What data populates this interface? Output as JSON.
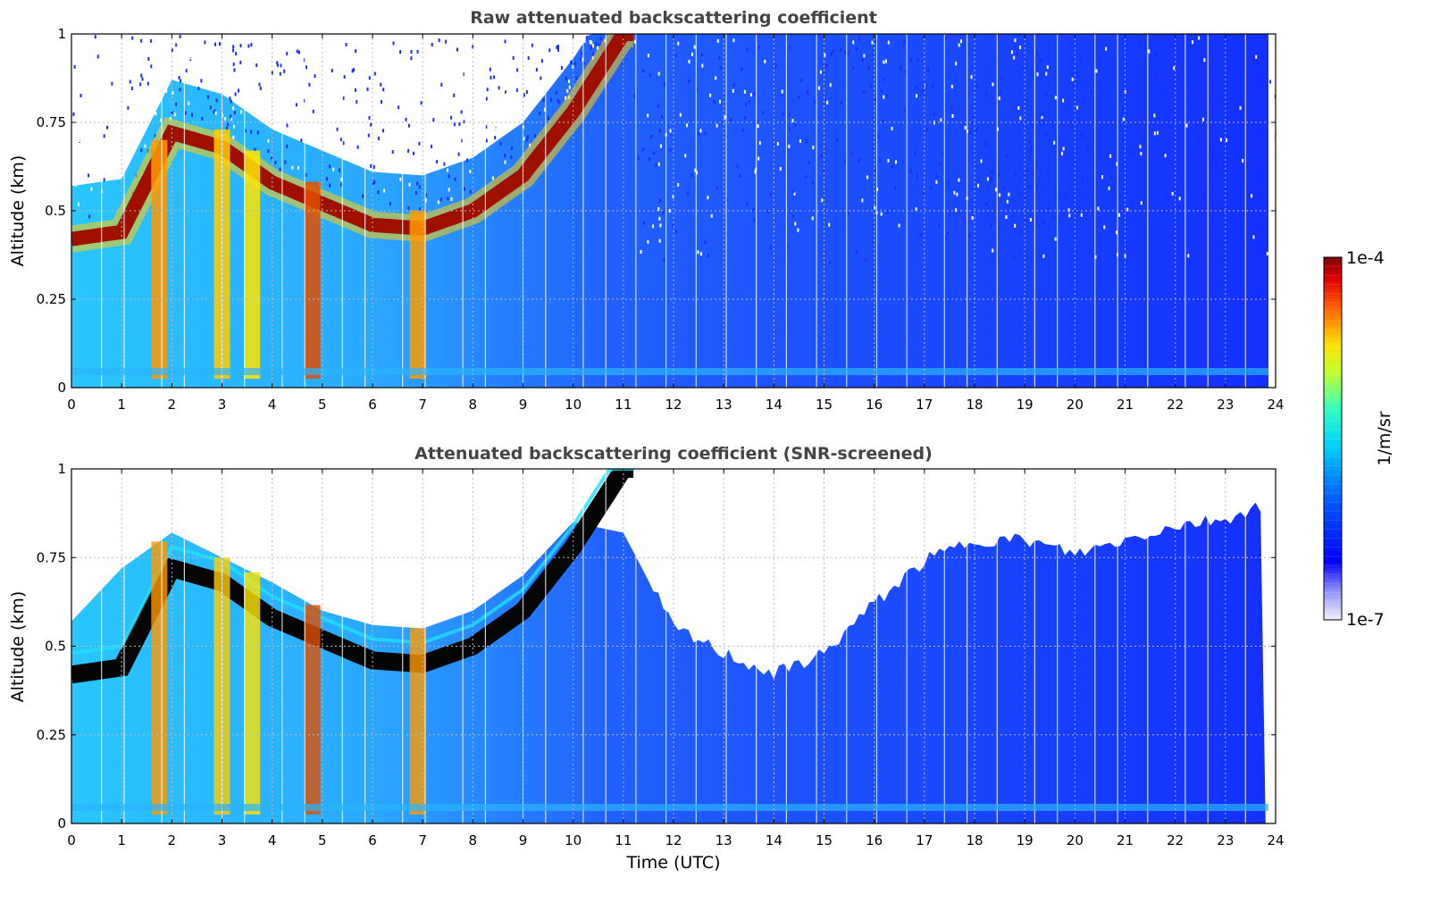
{
  "chart_data": [
    {
      "type": "heatmap",
      "title": "Raw attenuated backscattering coefficient",
      "xlabel": "",
      "ylabel": "Altitude (km)",
      "xlim": [
        0,
        24
      ],
      "ylim": [
        0,
        1
      ],
      "x_ticks": [
        "0",
        "1",
        "2",
        "3",
        "4",
        "5",
        "6",
        "7",
        "8",
        "9",
        "10",
        "11",
        "12",
        "13",
        "14",
        "15",
        "16",
        "17",
        "18",
        "19",
        "20",
        "21",
        "22",
        "23",
        "24"
      ],
      "y_ticks": [
        "0",
        "0.25",
        "0.5",
        "0.75",
        "1"
      ],
      "grid": true,
      "colorscale": "jet (log)",
      "layer_top_km": [
        [
          0,
          0.42
        ],
        [
          1,
          0.44
        ],
        [
          2,
          0.72
        ],
        [
          3,
          0.68
        ],
        [
          4,
          0.58
        ],
        [
          5,
          0.52
        ],
        [
          6,
          0.46
        ],
        [
          7,
          0.45
        ],
        [
          8,
          0.5
        ],
        [
          9,
          0.6
        ],
        [
          10,
          0.78
        ],
        [
          11,
          1.0
        ]
      ],
      "vertical_plumes_utc": [
        1.75,
        3.0,
        3.6,
        4.8,
        6.9
      ],
      "background_level": "low (blue) after 11 UTC"
    },
    {
      "type": "heatmap",
      "title": "Attenuated backscattering coefficient (SNR-screened)",
      "xlabel": "Time (UTC)",
      "ylabel": "Altitude (km)",
      "xlim": [
        0,
        24
      ],
      "ylim": [
        0,
        1
      ],
      "x_ticks": [
        "0",
        "1",
        "2",
        "3",
        "4",
        "5",
        "6",
        "7",
        "8",
        "9",
        "10",
        "11",
        "12",
        "13",
        "14",
        "15",
        "16",
        "17",
        "18",
        "19",
        "20",
        "21",
        "22",
        "23",
        "24"
      ],
      "y_ticks": [
        "0",
        "0.25",
        "0.5",
        "0.75",
        "1"
      ],
      "grid": true,
      "colorscale": "jet (log)",
      "screened_top_km": [
        [
          0,
          0.57
        ],
        [
          1,
          0.72
        ],
        [
          2,
          0.82
        ],
        [
          3,
          0.75
        ],
        [
          4,
          0.68
        ],
        [
          5,
          0.6
        ],
        [
          6,
          0.56
        ],
        [
          7,
          0.55
        ],
        [
          8,
          0.6
        ],
        [
          9,
          0.7
        ],
        [
          10,
          0.85
        ],
        [
          11,
          0.82
        ],
        [
          12,
          0.55
        ],
        [
          13,
          0.48
        ],
        [
          14,
          0.42
        ],
        [
          15,
          0.48
        ],
        [
          16,
          0.62
        ],
        [
          17,
          0.74
        ],
        [
          18,
          0.8
        ],
        [
          19,
          0.8
        ],
        [
          20,
          0.76
        ],
        [
          21,
          0.8
        ],
        [
          22,
          0.84
        ],
        [
          23,
          0.86
        ],
        [
          23.8,
          0.9
        ]
      ]
    }
  ],
  "colorbar": {
    "label": "1/m/sr",
    "max_label": "1e-4",
    "min_label": "1e-7"
  }
}
